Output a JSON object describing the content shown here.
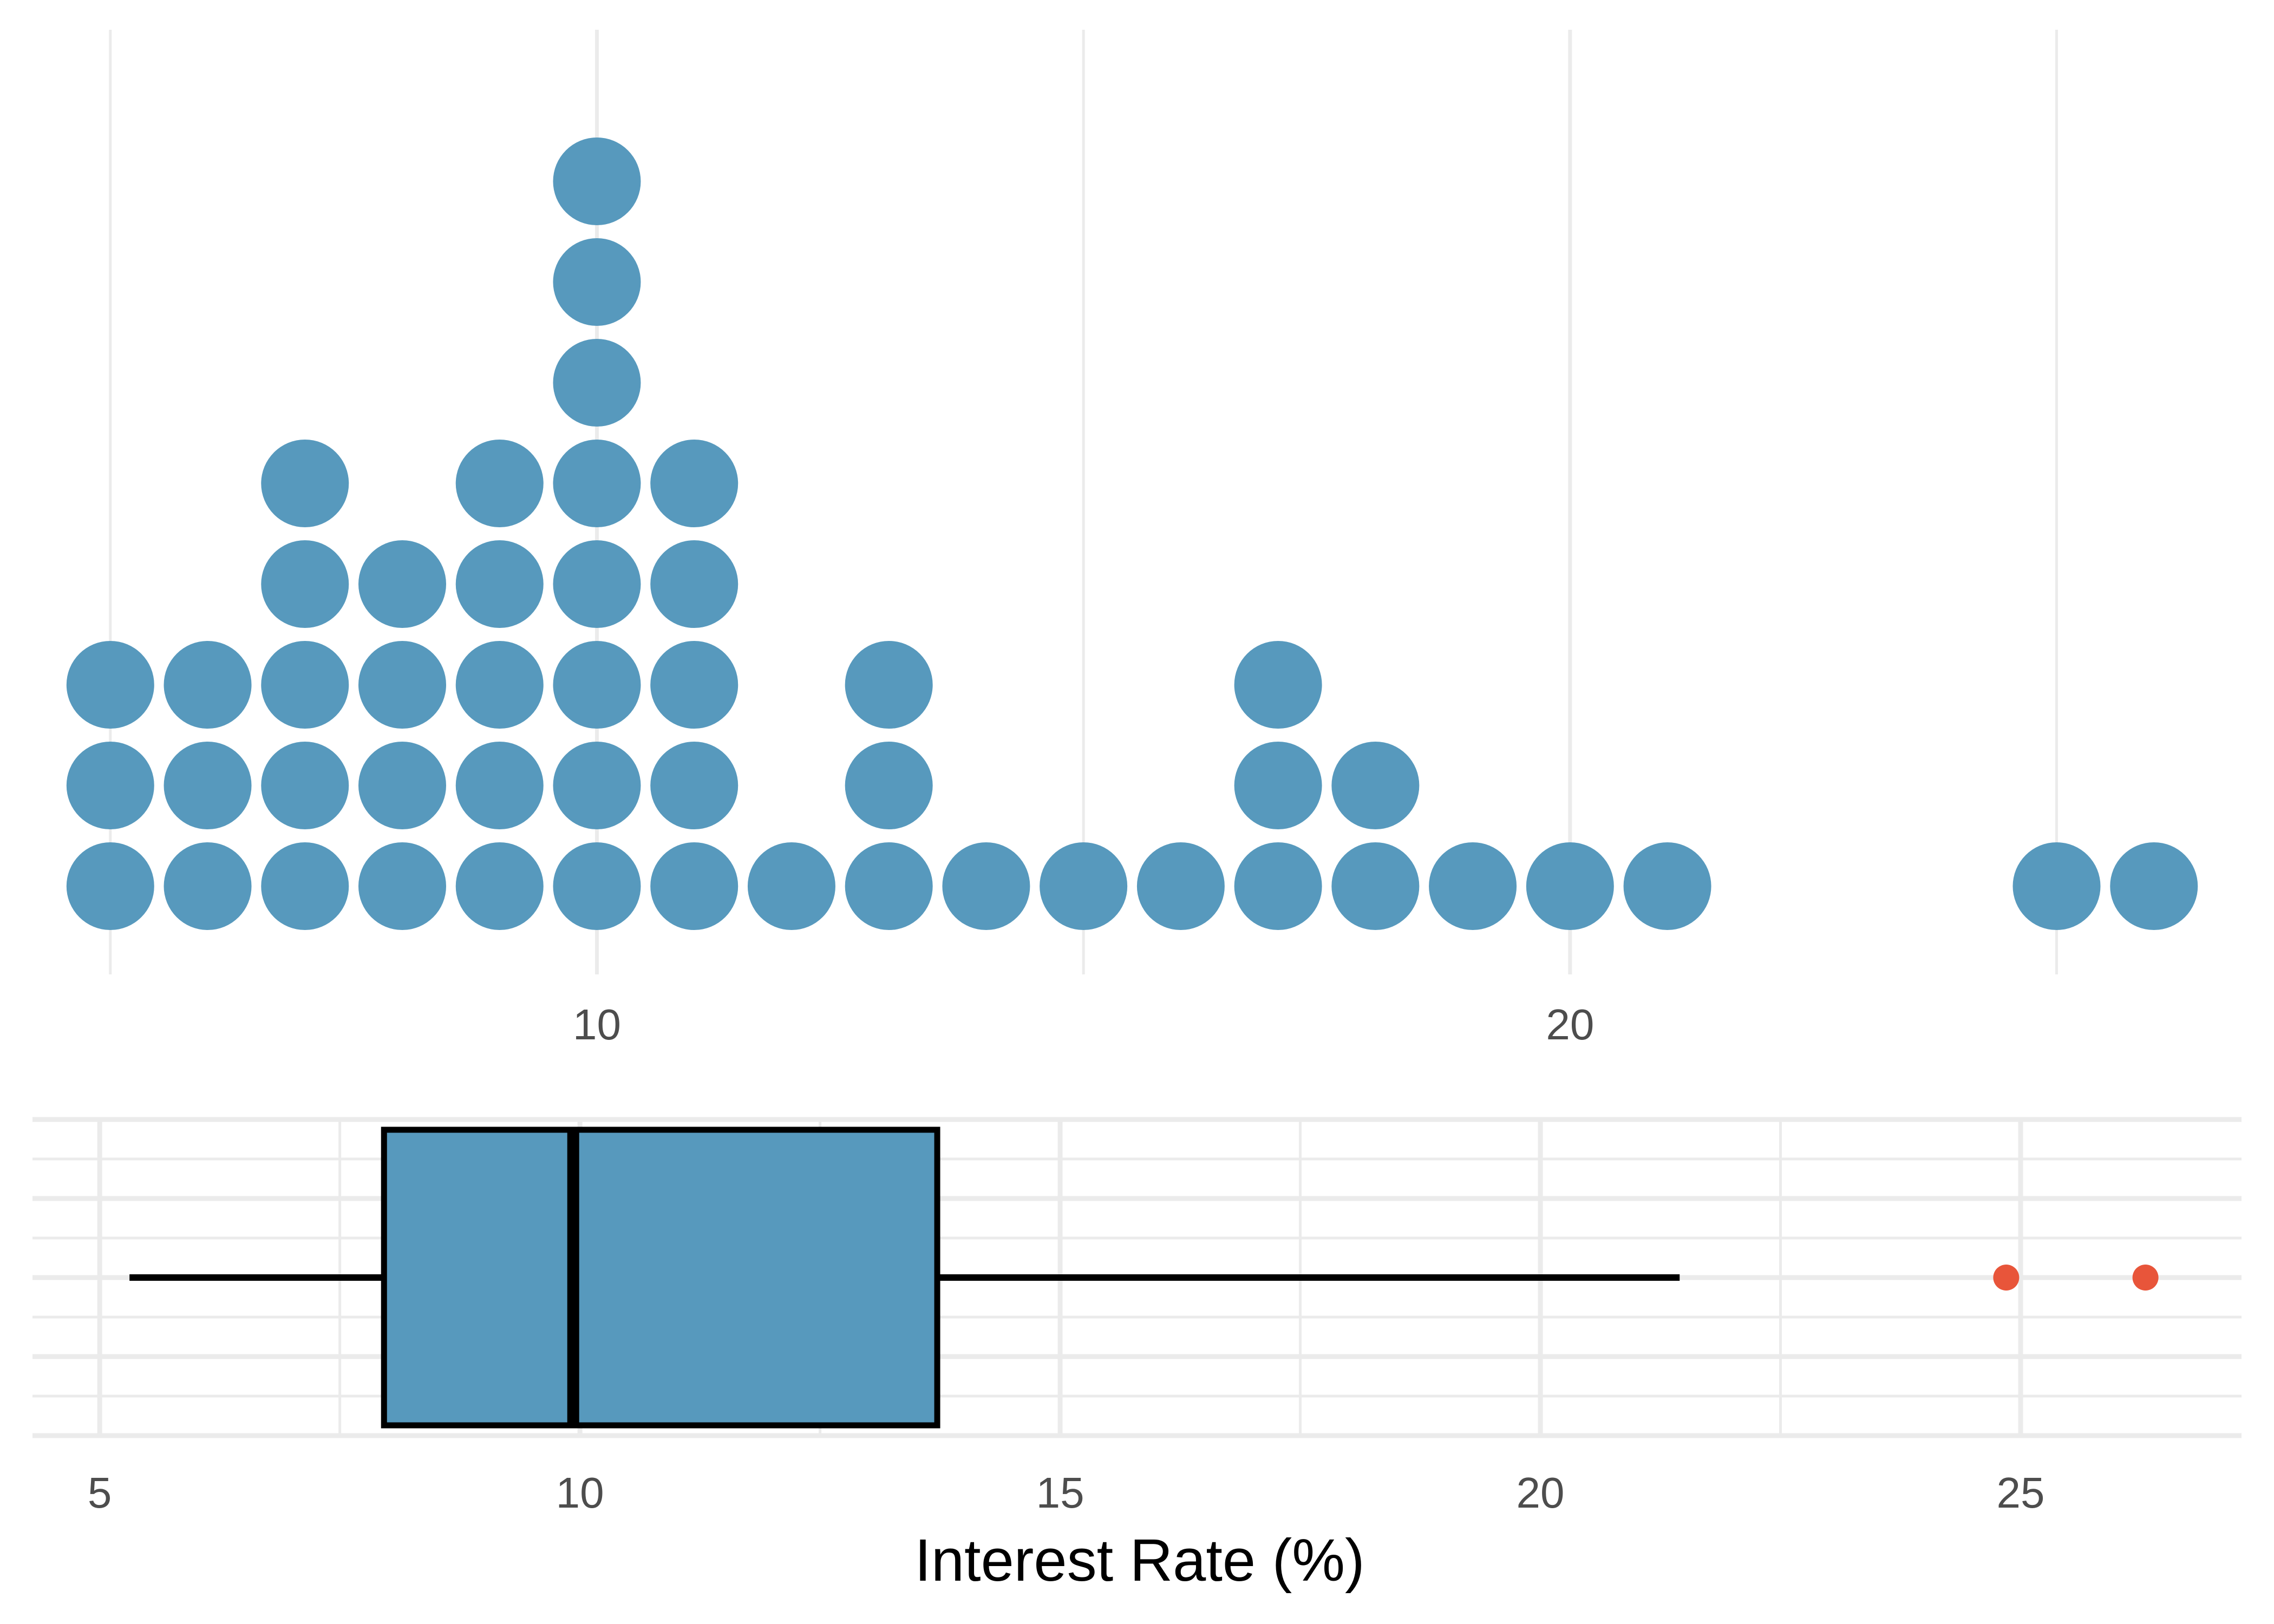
{
  "colors": {
    "dot_fill": "#5799bd",
    "box_fill": "#5799bd",
    "outlier": "#e8553a",
    "grid": "#ebebeb",
    "line": "#000000",
    "tick_text": "#4d4d4d"
  },
  "chart_data": [
    {
      "type": "dotplot",
      "xlim": [
        4.2,
        26.9
      ],
      "x_ticks": [
        "10",
        "20"
      ],
      "x_tick_values": [
        10,
        20
      ],
      "x_minor_grid": [
        5,
        15,
        25
      ],
      "grid": true,
      "stacks": [
        {
          "x": 5.0,
          "count": 3
        },
        {
          "x": 6.0,
          "count": 3
        },
        {
          "x": 7.0,
          "count": 5
        },
        {
          "x": 8.0,
          "count": 4
        },
        {
          "x": 9.0,
          "count": 5
        },
        {
          "x": 10.0,
          "count": 8
        },
        {
          "x": 11.0,
          "count": 5
        },
        {
          "x": 12.0,
          "count": 1
        },
        {
          "x": 13.0,
          "count": 3
        },
        {
          "x": 14.0,
          "count": 1
        },
        {
          "x": 15.0,
          "count": 1
        },
        {
          "x": 16.0,
          "count": 1
        },
        {
          "x": 17.0,
          "count": 3
        },
        {
          "x": 18.0,
          "count": 2
        },
        {
          "x": 19.0,
          "count": 1
        },
        {
          "x": 20.0,
          "count": 1
        },
        {
          "x": 21.0,
          "count": 1
        },
        {
          "x": 25.0,
          "count": 1
        },
        {
          "x": 26.0,
          "count": 1
        }
      ]
    },
    {
      "type": "boxplot",
      "xlim": [
        4.3,
        27.3
      ],
      "x_ticks": [
        "5",
        "10",
        "15",
        "20",
        "25"
      ],
      "x_tick_values": [
        5,
        10,
        15,
        20,
        25
      ],
      "xlabel": "Interest Rate (%)",
      "grid": true,
      "whisker_low": 5.31,
      "q1": 7.96,
      "median": 9.93,
      "q3": 13.72,
      "whisker_high": 21.45,
      "outliers": [
        24.85,
        26.3
      ]
    }
  ]
}
